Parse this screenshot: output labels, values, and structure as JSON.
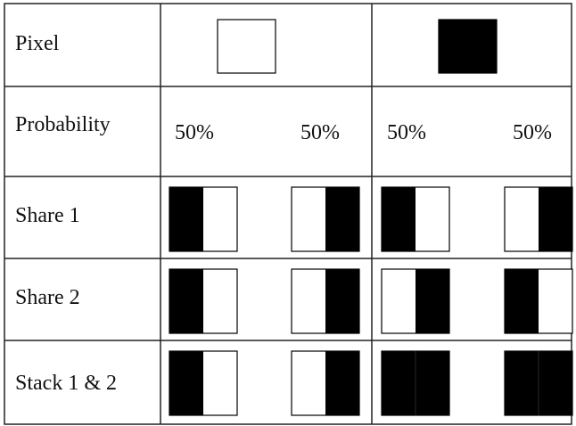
{
  "rows": [
    {
      "label": "Pixel"
    },
    {
      "label": "Probability"
    },
    {
      "label": "Share 1"
    },
    {
      "label": "Share 2"
    },
    {
      "label": "Stack 1 & 2"
    }
  ],
  "pixels": [
    {
      "color": "white"
    },
    {
      "color": "black"
    }
  ],
  "probabilities": [
    "50%",
    "50%",
    "50%",
    "50%"
  ],
  "patterns": {
    "share1": [
      "black-left",
      "black-right",
      "black-left",
      "black-right"
    ],
    "share2": [
      "black-left",
      "black-right",
      "black-right",
      "black-left"
    ],
    "stack": [
      "black-left",
      "black-right",
      "black-full",
      "black-full"
    ]
  },
  "colors": {
    "black": "#000000",
    "white": "#ffffff",
    "grid": "#222222"
  }
}
